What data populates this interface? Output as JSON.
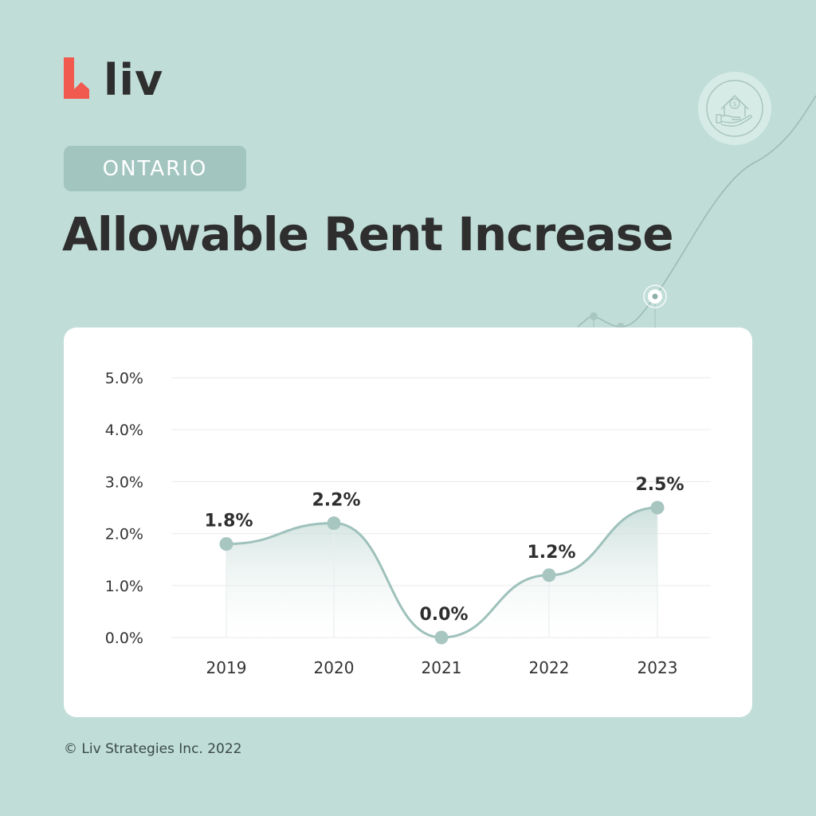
{
  "brand": {
    "logo_text": "liv",
    "logo_color": "#f15a4f"
  },
  "header": {
    "region_badge": "ONTARIO",
    "title": "Allowable Rent Increase"
  },
  "decoration": {
    "icon": "hand-house-dollar-icon"
  },
  "colors": {
    "background": "#c0ddd7",
    "badge": "#a2c5bf",
    "line": "#9fc1bb",
    "text": "#2e2e2e",
    "grid": "#efefef"
  },
  "chart_data": {
    "type": "line",
    "title": "Allowable Rent Increase",
    "subtitle": "ONTARIO",
    "xlabel": "",
    "ylabel": "",
    "categories": [
      "2019",
      "2020",
      "2021",
      "2022",
      "2023"
    ],
    "values": [
      1.8,
      2.2,
      0.0,
      1.2,
      2.5
    ],
    "data_labels": [
      "1.8%",
      "2.2%",
      "0.0%",
      "1.2%",
      "2.5%"
    ],
    "y_ticks": [
      "0.0%",
      "1.0%",
      "2.0%",
      "3.0%",
      "4.0%",
      "5.0%"
    ],
    "ylim": [
      0,
      5
    ],
    "grid": true,
    "smooth": true,
    "area_fill": true,
    "legend": null
  },
  "footer": {
    "copyright": "© Liv Strategies Inc. 2022"
  }
}
